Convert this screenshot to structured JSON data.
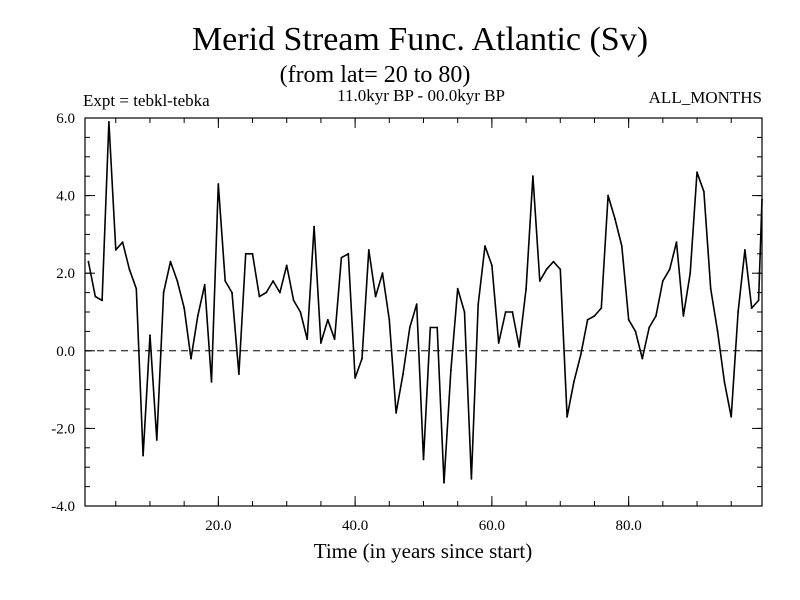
{
  "chart_data": {
    "type": "line",
    "title": "Merid Stream Func. Atlantic (Sv)",
    "subtitle": "(from lat= 20 to 80)",
    "left_note": "Expt = tebkl-tebka",
    "center_note": "11.0kyr BP - 00.0kyr BP",
    "right_note": "ALL_MONTHS",
    "xlabel": "Time (in years since start)",
    "ylabel": "",
    "xlim": [
      0.5,
      99.5
    ],
    "ylim": [
      -4.0,
      6.0
    ],
    "x_ticks": [
      {
        "value": 20,
        "label": "20.0"
      },
      {
        "value": 40,
        "label": "40.0"
      },
      {
        "value": 60,
        "label": "60.0"
      },
      {
        "value": 80,
        "label": "80.0"
      }
    ],
    "y_ticks": [
      {
        "value": -4,
        "label": "-4.0"
      },
      {
        "value": -2,
        "label": "-2.0"
      },
      {
        "value": 0,
        "label": "0.0"
      },
      {
        "value": 2,
        "label": "2.0"
      },
      {
        "value": 4,
        "label": "4.0"
      },
      {
        "value": 6,
        "label": "6.0"
      }
    ],
    "reference_line": 0.0,
    "series": [
      {
        "name": "Merid Stream Func.",
        "x": [
          1,
          2,
          3,
          4,
          5,
          6,
          7,
          8,
          9,
          10,
          11,
          12,
          13,
          14,
          15,
          16,
          17,
          18,
          19,
          20,
          21,
          22,
          23,
          24,
          25,
          26,
          27,
          28,
          29,
          30,
          31,
          32,
          33,
          34,
          35,
          36,
          37,
          38,
          39,
          40,
          41,
          42,
          43,
          44,
          45,
          46,
          47,
          48,
          49,
          50,
          51,
          52,
          53,
          54,
          55,
          56,
          57,
          58,
          59,
          60,
          61,
          62,
          63,
          64,
          65,
          66,
          67,
          68,
          69,
          70,
          71,
          72,
          73,
          74,
          75,
          76,
          77,
          78,
          79,
          80,
          81,
          82,
          83,
          84,
          85,
          86,
          87,
          88,
          89,
          90,
          91,
          92,
          93,
          94,
          95,
          96,
          97,
          98,
          99,
          100
        ],
        "values": [
          2.3,
          1.4,
          1.3,
          5.9,
          2.6,
          2.8,
          2.1,
          1.6,
          -2.7,
          0.4,
          -2.3,
          1.5,
          2.3,
          1.8,
          1.1,
          -0.2,
          0.9,
          1.7,
          -0.8,
          4.3,
          1.8,
          1.5,
          -0.6,
          2.5,
          2.5,
          1.4,
          1.5,
          1.8,
          1.5,
          2.2,
          1.3,
          1.0,
          0.3,
          3.2,
          0.2,
          0.8,
          0.3,
          2.4,
          2.5,
          -0.7,
          -0.2,
          2.6,
          1.4,
          2.0,
          0.8,
          -1.6,
          -0.6,
          0.6,
          1.2,
          -2.8,
          0.6,
          0.6,
          -3.4,
          -0.5,
          1.6,
          1.0,
          -3.3,
          1.2,
          2.7,
          2.2,
          0.2,
          1.0,
          1.0,
          0.1,
          1.6,
          4.5,
          1.8,
          2.1,
          2.3,
          2.1,
          -1.7,
          -0.8,
          -0.1,
          0.8,
          0.9,
          1.1,
          4.0,
          3.4,
          2.7,
          0.8,
          0.5,
          -0.2,
          0.6,
          0.9,
          1.8,
          2.1,
          2.8,
          0.9,
          2.0,
          4.6,
          4.1,
          1.6,
          0.5,
          -0.8,
          -1.7,
          1.0,
          2.6,
          1.1,
          1.3,
          3.9
        ]
      }
    ]
  }
}
